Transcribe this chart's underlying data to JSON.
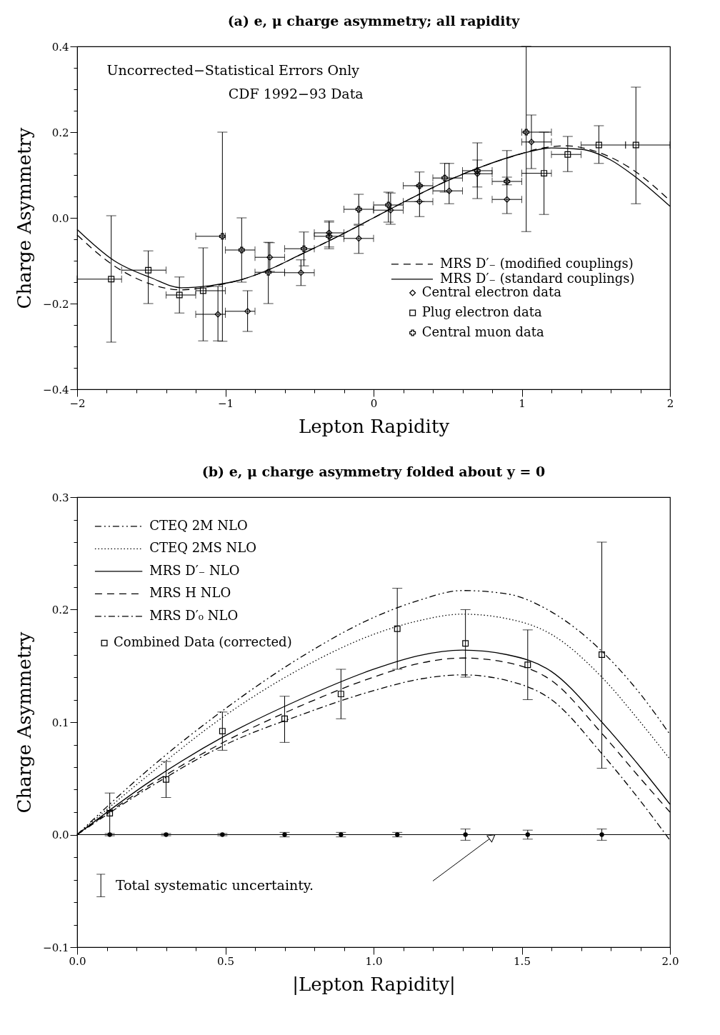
{
  "chart_data": [
    {
      "type": "scatter",
      "title": "(a) e, μ charge asymmetry; all rapidity",
      "xlabel": "Lepton Rapidity",
      "ylabel": "Charge Asymmetry",
      "xlim": [
        -2,
        2
      ],
      "ylim": [
        -0.4,
        0.4
      ],
      "xticks": [
        {
          "value": -2,
          "label": "−2"
        },
        {
          "value": -1.8,
          "label": null
        },
        {
          "value": -1.6,
          "label": null
        },
        {
          "value": -1.4,
          "label": null
        },
        {
          "value": -1.2,
          "label": null
        },
        {
          "value": -1,
          "label": "−1"
        },
        {
          "value": -0.8,
          "label": null
        },
        {
          "value": -0.6,
          "label": null
        },
        {
          "value": -0.4,
          "label": null
        },
        {
          "value": -0.2,
          "label": null
        },
        0,
        {
          "value": 0.2,
          "label": null
        },
        {
          "value": 0.4,
          "label": null
        },
        {
          "value": 0.6,
          "label": null
        },
        {
          "value": 0.8,
          "label": null
        },
        1,
        {
          "value": 1.2,
          "label": null
        },
        {
          "value": 1.4,
          "label": null
        },
        {
          "value": 1.6,
          "label": null
        },
        {
          "value": 1.8,
          "label": null
        },
        2
      ],
      "yticks": [
        {
          "value": -0.4,
          "label": "−0.4"
        },
        {
          "value": -0.35,
          "label": null
        },
        {
          "value": -0.3,
          "label": null
        },
        {
          "value": -0.25,
          "label": null
        },
        {
          "value": -0.2,
          "label": "−0.2"
        },
        {
          "value": -0.15,
          "label": null
        },
        {
          "value": -0.1,
          "label": null
        },
        {
          "value": -0.05,
          "label": null
        },
        {
          "value": 0,
          "label": "0.0"
        },
        {
          "value": 0.05,
          "label": null
        },
        {
          "value": 0.1,
          "label": null
        },
        {
          "value": 0.15,
          "label": null
        },
        0.2,
        {
          "value": 0.25,
          "label": null
        },
        {
          "value": 0.3,
          "label": null
        },
        {
          "value": 0.35,
          "label": null
        },
        0.4
      ],
      "grid": false,
      "legend": "bottom right",
      "annotations": [
        "Uncorrected−Statistical Errors Only",
        "CDF 1992−93 Data"
      ],
      "series": [
        {
          "name": "MRS D′₋ (modified couplings)",
          "type": "line",
          "line_style": "dashed",
          "marker": "none",
          "color": "#000000",
          "x": [
            -2,
            -1.75,
            -1.5,
            -1.3,
            -1.1,
            -0.9,
            -0.7,
            -0.5,
            -0.25,
            0,
            0.25,
            0.5,
            0.75,
            1,
            1.1,
            1.3,
            1.5,
            1.75,
            2
          ],
          "values": [
            -0.04,
            -0.112,
            -0.155,
            -0.168,
            -0.16,
            -0.145,
            -0.12,
            -0.087,
            -0.045,
            0,
            0.045,
            0.087,
            0.122,
            0.15,
            0.16,
            0.168,
            0.155,
            0.112,
            0.04
          ]
        },
        {
          "name": "MRS D′₋ (standard couplings)",
          "type": "line",
          "line_style": "solid",
          "marker": "none",
          "color": "#000000",
          "x": [
            -2,
            -1.75,
            -1.5,
            -1.3,
            -1.1,
            -0.9,
            -0.7,
            -0.5,
            -0.25,
            0,
            0.25,
            0.5,
            0.75,
            1,
            1.2,
            1.4,
            1.6,
            1.75,
            2
          ],
          "values": [
            -0.027,
            -0.1,
            -0.14,
            -0.163,
            -0.158,
            -0.145,
            -0.12,
            -0.087,
            -0.045,
            0,
            0.045,
            0.087,
            0.122,
            0.15,
            0.163,
            0.16,
            0.135,
            0.1,
            0.027
          ]
        },
        {
          "name": "Central electron data",
          "marker": "diamond",
          "color": "#000000",
          "x": [
            -1.05,
            -0.85,
            -0.7,
            -0.49,
            -0.3,
            -0.1,
            0.115,
            0.31,
            0.51,
            0.7,
            0.9,
            1.065
          ],
          "values": [
            -0.225,
            -0.218,
            -0.092,
            -0.128,
            -0.035,
            -0.048,
            0.018,
            0.038,
            0.063,
            0.103,
            0.043,
            0.177
          ],
          "errors": [
            [
              -0.287,
              -0.16
            ],
            [
              -0.265,
              -0.17
            ],
            [
              -0.125,
              -0.058
            ],
            [
              -0.158,
              -0.098
            ],
            [
              -0.072,
              -0.007
            ],
            [
              -0.083,
              -0.017
            ],
            [
              -0.015,
              0.058
            ],
            [
              0.003,
              0.075
            ],
            [
              0.033,
              0.127
            ],
            [
              0.045,
              0.175
            ],
            [
              0.01,
              0.157
            ],
            [
              0.115,
              0.24
            ]
          ],
          "xerrors": [
            [
              -1.2,
              -1.0
            ],
            [
              -1.0,
              -0.8
            ],
            [
              -0.8,
              -0.6
            ],
            [
              -0.6,
              -0.4
            ],
            [
              -0.4,
              -0.2
            ],
            [
              -0.2,
              0
            ],
            [
              0,
              0.2
            ],
            [
              0.2,
              0.4
            ],
            [
              0.4,
              0.6
            ],
            [
              0.6,
              0.8
            ],
            [
              0.8,
              1.0
            ],
            [
              1.0,
              1.2
            ]
          ]
        },
        {
          "name": "Plug electron data",
          "marker": "square",
          "color": "#000000",
          "x": [
            -1.77,
            -1.52,
            -1.31,
            -1.15,
            1.15,
            1.31,
            1.52,
            1.77
          ],
          "values": [
            -0.143,
            -0.122,
            -0.18,
            -0.17,
            0.104,
            0.148,
            0.17,
            0.17
          ],
          "errors": [
            [
              -0.29,
              0.005
            ],
            [
              -0.2,
              -0.077
            ],
            [
              -0.222,
              -0.138
            ],
            [
              -0.287,
              -0.07
            ],
            [
              0.008,
              0.2
            ],
            [
              0.108,
              0.19
            ],
            [
              0.127,
              0.215
            ],
            [
              0.033,
              0.305
            ]
          ],
          "xerrors": [
            [
              -2.0,
              -1.7
            ],
            [
              -1.7,
              -1.4
            ],
            [
              -1.4,
              -1.2
            ],
            [
              -1.2,
              -1.0
            ],
            [
              1.0,
              1.2
            ],
            [
              1.2,
              1.4
            ],
            [
              1.4,
              1.7
            ],
            [
              1.7,
              2.0
            ]
          ]
        },
        {
          "name": "Central muon data",
          "marker": "cross",
          "color": "#000000",
          "x": [
            -1.02,
            -0.89,
            -0.71,
            -0.47,
            -0.3,
            -0.1,
            0.1,
            0.31,
            0.48,
            0.7,
            0.9,
            1.03
          ],
          "values": [
            -0.043,
            -0.075,
            -0.127,
            -0.072,
            -0.043,
            0.02,
            0.03,
            0.075,
            0.093,
            0.11,
            0.085,
            0.2
          ],
          "errors": [
            [
              -0.288,
              0.2
            ],
            [
              -0.15,
              0.0
            ],
            [
              -0.2,
              -0.057
            ],
            [
              -0.112,
              -0.033
            ],
            [
              -0.068,
              -0.01
            ],
            [
              -0.015,
              0.055
            ],
            [
              -0.01,
              0.06
            ],
            [
              0.038,
              0.107
            ],
            [
              0.06,
              0.127
            ],
            [
              0.072,
              0.135
            ],
            [
              0.077,
              0.095
            ],
            [
              -0.032,
              0.4
            ]
          ],
          "xerrors": [
            [
              -1.2,
              -1.0
            ],
            [
              -1.0,
              -0.8
            ],
            [
              -0.8,
              -0.6
            ],
            [
              -0.6,
              -0.4
            ],
            [
              -0.4,
              -0.2
            ],
            [
              -0.2,
              0
            ],
            [
              0,
              0.2
            ],
            [
              0.2,
              0.4
            ],
            [
              0.4,
              0.6
            ],
            [
              0.6,
              0.8
            ],
            [
              0.8,
              1.0
            ],
            [
              1.0,
              1.2
            ]
          ]
        }
      ]
    },
    {
      "type": "scatter",
      "title": "(b) e, μ charge asymmetry folded about y = 0",
      "xlabel": "|Lepton Rapidity|",
      "ylabel": "Charge Asymmetry",
      "xlim": [
        0,
        2
      ],
      "ylim": [
        -0.1,
        0.3
      ],
      "xticks": [
        {
          "value": 0,
          "label": "0.0"
        },
        {
          "value": 0.1,
          "label": null
        },
        {
          "value": 0.2,
          "label": null
        },
        {
          "value": 0.3,
          "label": null
        },
        {
          "value": 0.4,
          "label": null
        },
        0.5,
        {
          "value": 0.6,
          "label": null
        },
        {
          "value": 0.7,
          "label": null
        },
        {
          "value": 0.8,
          "label": null
        },
        {
          "value": 0.9,
          "label": null
        },
        {
          "value": 1,
          "label": "1.0"
        },
        {
          "value": 1.1,
          "label": null
        },
        {
          "value": 1.2,
          "label": null
        },
        {
          "value": 1.3,
          "label": null
        },
        {
          "value": 1.4,
          "label": null
        },
        1.5,
        {
          "value": 1.6,
          "label": null
        },
        {
          "value": 1.7,
          "label": null
        },
        {
          "value": 1.8,
          "label": null
        },
        {
          "value": 1.9,
          "label": null
        },
        {
          "value": 2,
          "label": "2.0"
        }
      ],
      "yticks": [
        {
          "value": -0.1,
          "label": "−0.1"
        },
        {
          "value": -0.08,
          "label": null
        },
        {
          "value": -0.06,
          "label": null
        },
        {
          "value": -0.04,
          "label": null
        },
        {
          "value": -0.02,
          "label": null
        },
        {
          "value": 0,
          "label": "0.0"
        },
        {
          "value": 0.02,
          "label": null
        },
        {
          "value": 0.04,
          "label": null
        },
        {
          "value": 0.06,
          "label": null
        },
        {
          "value": 0.08,
          "label": null
        },
        0.1,
        {
          "value": 0.12,
          "label": null
        },
        {
          "value": 0.14,
          "label": null
        },
        {
          "value": 0.16,
          "label": null
        },
        {
          "value": 0.18,
          "label": null
        },
        0.2,
        {
          "value": 0.22,
          "label": null
        },
        {
          "value": 0.24,
          "label": null
        },
        {
          "value": 0.26,
          "label": null
        },
        {
          "value": 0.28,
          "label": null
        },
        0.3
      ],
      "grid": false,
      "legend": "top left",
      "ref_lines": [
        {
          "axis": "y",
          "value": 0,
          "color": "#000000"
        }
      ],
      "annotations": [
        "Total systematic uncertainty."
      ],
      "series": [
        {
          "name": "CTEQ 2M NLO",
          "type": "line",
          "line_style": "dashdotdot",
          "marker": "none",
          "color": "#000000",
          "x": [
            0,
            0.25,
            0.5,
            0.75,
            1.0,
            1.15,
            1.3,
            1.45,
            1.6,
            1.77,
            1.9,
            2.0
          ],
          "values": [
            0,
            0.06,
            0.112,
            0.157,
            0.193,
            0.208,
            0.217,
            0.214,
            0.198,
            0.163,
            0.125,
            0.089
          ]
        },
        {
          "name": "CTEQ 2MS NLO",
          "type": "line",
          "line_style": "dotted",
          "marker": "none",
          "color": "#000000",
          "x": [
            0,
            0.25,
            0.5,
            0.75,
            1.0,
            1.15,
            1.3,
            1.45,
            1.6,
            1.77,
            1.9,
            2.0
          ],
          "values": [
            0,
            0.055,
            0.106,
            0.147,
            0.178,
            0.19,
            0.196,
            0.192,
            0.178,
            0.14,
            0.1,
            0.067
          ]
        },
        {
          "name": "MRS D′₋ NLO",
          "type": "line",
          "line_style": "solid",
          "marker": "none",
          "color": "#000000",
          "x": [
            0,
            0.25,
            0.5,
            0.75,
            1.0,
            1.15,
            1.3,
            1.45,
            1.6,
            1.77,
            1.9,
            2.0
          ],
          "values": [
            0,
            0.048,
            0.088,
            0.12,
            0.147,
            0.159,
            0.164,
            0.16,
            0.145,
            0.1,
            0.06,
            0.027
          ]
        },
        {
          "name": "MRS H NLO",
          "type": "line",
          "line_style": "dashed",
          "marker": "none",
          "color": "#000000",
          "x": [
            0,
            0.25,
            0.5,
            0.75,
            1.0,
            1.15,
            1.3,
            1.45,
            1.6,
            1.77,
            1.9,
            2.0
          ],
          "values": [
            0,
            0.045,
            0.083,
            0.114,
            0.14,
            0.152,
            0.157,
            0.153,
            0.137,
            0.09,
            0.05,
            0.02
          ]
        },
        {
          "name": "MRS D′₀ NLO",
          "type": "line",
          "line_style": "dashdot",
          "marker": "none",
          "color": "#000000",
          "x": [
            0,
            0.25,
            0.5,
            0.75,
            1.0,
            1.15,
            1.3,
            1.45,
            1.6,
            1.77,
            1.9,
            2.0
          ],
          "values": [
            0,
            0.043,
            0.08,
            0.106,
            0.128,
            0.138,
            0.142,
            0.137,
            0.12,
            0.072,
            0.03,
            -0.005
          ]
        },
        {
          "name": "Combined Data (corrected)",
          "marker": "square",
          "color": "#000000",
          "x": [
            0.11,
            0.3,
            0.49,
            0.7,
            0.89,
            1.08,
            1.31,
            1.52,
            1.77
          ],
          "values": [
            0.019,
            0.049,
            0.092,
            0.103,
            0.125,
            0.183,
            0.17,
            0.151,
            0.16
          ],
          "errors": [
            [
              0.0,
              0.037
            ],
            [
              0.033,
              0.065
            ],
            [
              0.075,
              0.109
            ],
            [
              0.082,
              0.123
            ],
            [
              0.103,
              0.147
            ],
            [
              0.147,
              0.219
            ],
            [
              0.14,
              0.2
            ],
            [
              0.12,
              0.182
            ],
            [
              0.059,
              0.26
            ]
          ]
        },
        {
          "marker": "circle",
          "color": "#000000",
          "x": [
            0.11,
            0.3,
            0.49,
            0.7,
            0.89,
            1.08,
            1.31,
            1.52,
            1.77
          ],
          "values": [
            0,
            0,
            0,
            0,
            0,
            0,
            0,
            0,
            0
          ],
          "errors": [
            0.001,
            0.001,
            0.001,
            0.002,
            0.002,
            0.002,
            0.005,
            0.004,
            0.005
          ]
        }
      ]
    }
  ]
}
